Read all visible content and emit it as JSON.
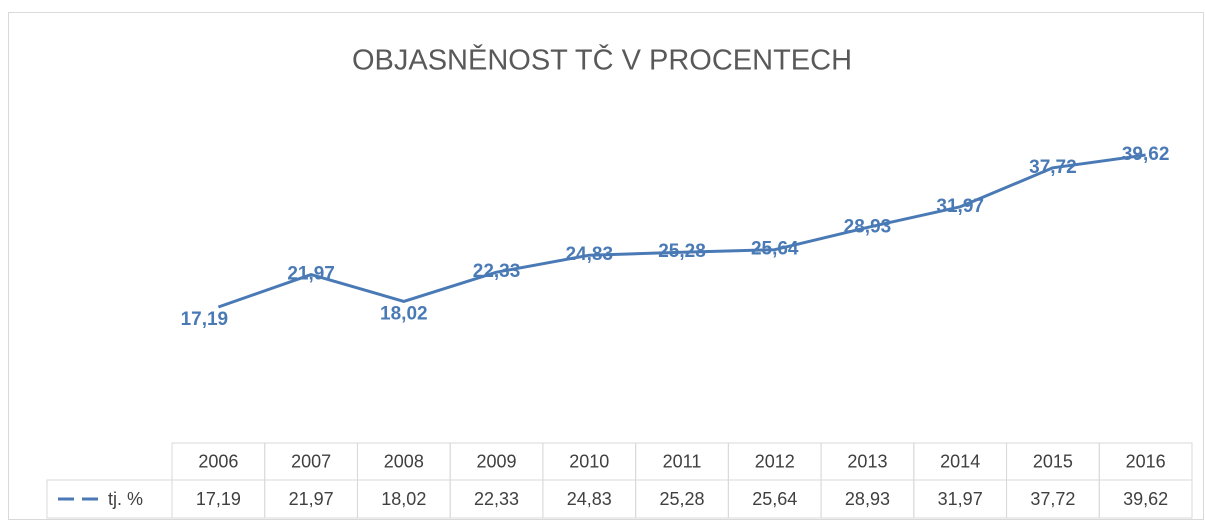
{
  "chart_data": {
    "type": "line",
    "title": "OBJASNĚNOST TČ V PROCENTECH",
    "categories": [
      "2006",
      "2007",
      "2008",
      "2009",
      "2010",
      "2011",
      "2012",
      "2013",
      "2014",
      "2015",
      "2016"
    ],
    "series": [
      {
        "name": "tj. %",
        "color": "#4a7ab5",
        "values": [
          17.19,
          21.97,
          18.02,
          22.33,
          24.83,
          25.28,
          25.64,
          28.93,
          31.97,
          37.72,
          39.62
        ],
        "value_labels": [
          "17,19",
          "21,97",
          "18,02",
          "22,33",
          "24,83",
          "25,28",
          "25,64",
          "28,93",
          "31,97",
          "37,72",
          "39,62"
        ]
      }
    ],
    "ylim": [
      0,
      45
    ]
  }
}
